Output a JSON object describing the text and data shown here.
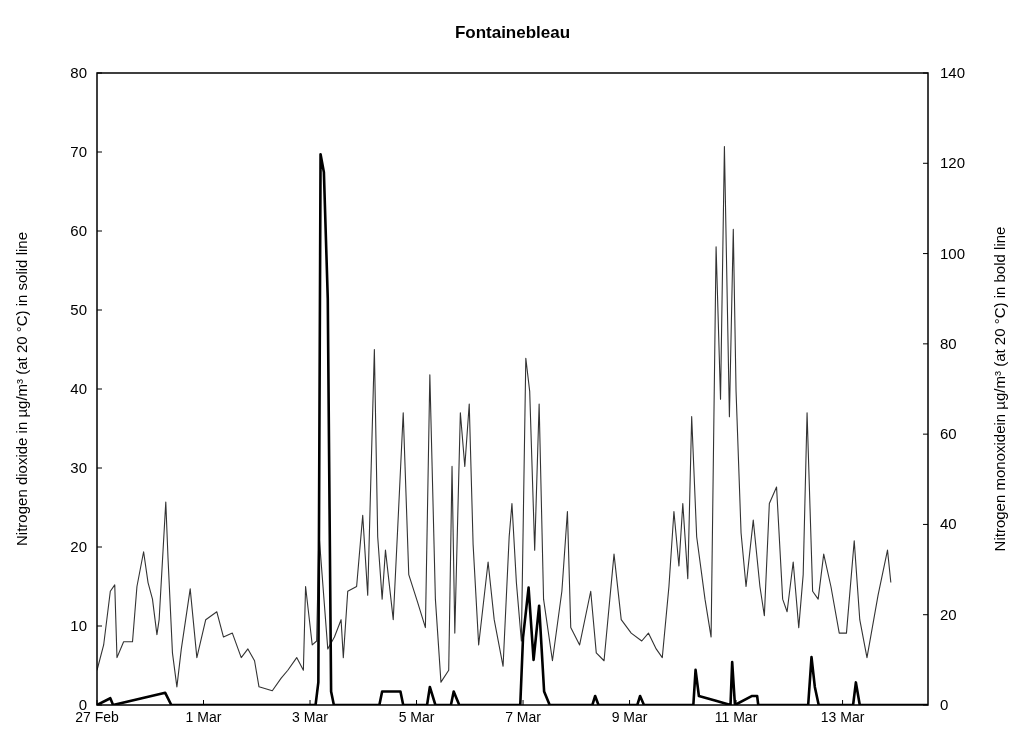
{
  "chart_data": {
    "type": "line",
    "title": "Fontainebleau",
    "ylabel": "Nitrogen dioxide in µg/m³ (at 20 °C) in solid line",
    "y2label": "Nitrogen monoxidein µg/m³ (at 20 °C) in bold line",
    "xlim": [
      "--02-27T00:00",
      "--03-14T14:30"
    ],
    "xticks": [
      {
        "value": "--02-27",
        "label": "27 Feb"
      },
      {
        "value": "--03-01",
        "label": "1 Mar"
      },
      {
        "value": "--03-03",
        "label": "3 Mar"
      },
      {
        "value": "--03-05",
        "label": "5 Mar"
      },
      {
        "value": "--03-07",
        "label": "7 Mar"
      },
      {
        "value": "--03-09",
        "label": "9 Mar"
      },
      {
        "value": "--03-11",
        "label": "11 Mar"
      },
      {
        "value": "--03-13",
        "label": "13 Mar"
      }
    ],
    "ylim": [
      0,
      80
    ],
    "yticks": [
      0,
      10,
      20,
      30,
      40,
      50,
      60,
      70,
      80
    ],
    "y2lim": [
      0,
      140
    ],
    "y2ticks": [
      0,
      20,
      40,
      60,
      80,
      100,
      120,
      140
    ],
    "grid": false,
    "marker": "none",
    "line_style": "solid",
    "series": [
      {
        "color": "#333333",
        "x": [
          "--02-27T00:00",
          "--02-27T03:00",
          "--02-27T06:00",
          "--02-27T08:00",
          "--02-27T09:00",
          "--02-27T12:00",
          "--02-27T16:00",
          "--02-27T18:00",
          "--02-27T21:00",
          "--02-27T23:00",
          "--02-28T01:00",
          "--02-28T03:00",
          "--02-28T04:00",
          "--02-28T07:00",
          "--02-28T08:00",
          "--02-28T10:00",
          "--02-28T12:00",
          "--02-28T14:00",
          "--02-28T18:00",
          "--02-28T21:00",
          "--03-01T01:00",
          "--03-01T06:00",
          "--03-01T09:00",
          "--03-01T13:00",
          "--03-01T17:00",
          "--03-01T20:00",
          "--03-01T23:00",
          "--03-02T01:00",
          "--03-02T07:00",
          "--03-02T11:00",
          "--03-02T14:00",
          "--03-02T18:00",
          "--03-02T21:00",
          "--03-02T22:00",
          "--03-03T01:00",
          "--03-03T03:00",
          "--03-03T04:00",
          "--03-03T08:00",
          "--03-03T11:00",
          "--03-03T14:00",
          "--03-03T15:00",
          "--03-03T17:00",
          "--03-03T21:00",
          "--03-03T23:45",
          "--03-04T02:00",
          "--03-04T05:00",
          "--03-04T06:30",
          "--03-04T08:30",
          "--03-04T10:00",
          "--03-04T13:30",
          "--03-04T15:30",
          "--03-04T18:00",
          "--03-04T20:30",
          "--03-05T00:30",
          "--03-05T04:00",
          "--03-05T06:00",
          "--03-05T08:30",
          "--03-05T11:00",
          "--03-05T14:30",
          "--03-05T16:00",
          "--03-05T17:15",
          "--03-05T19:45",
          "--03-05T21:45",
          "--03-05T23:45",
          "--03-06T01:30",
          "--03-06T04:00",
          "--03-06T08:15",
          "--03-06T11:00",
          "--03-06T15:00",
          "--03-06T17:45",
          "--03-06T19:00",
          "--03-06T21:00",
          "--03-06T23:15",
          "--03-07T01:15",
          "--03-07T03:00",
          "--03-07T05:15",
          "--03-07T07:15",
          "--03-07T09:15",
          "--03-07T13:15",
          "--03-07T17:30",
          "--03-07T20:00",
          "--03-07T21:30",
          "--03-08T01:30",
          "--03-08T06:30",
          "--03-08T09:00",
          "--03-08T12:30",
          "--03-08T17:00",
          "--03-08T20:15",
          "--03-09T00:45",
          "--03-09T05:30",
          "--03-09T08:30",
          "--03-09T12:00",
          "--03-09T14:45",
          "--03-09T17:45",
          "--03-09T20:00",
          "--03-09T22:15",
          "--03-10T00:00",
          "--03-10T02:15",
          "--03-10T04:00",
          "--03-10T06:15",
          "--03-10T08:15",
          "--03-10T10:00",
          "--03-10T12:45",
          "--03-10T15:00",
          "--03-10T17:00",
          "--03-10T18:45",
          "--03-10T21:00",
          "--03-10T22:45",
          "--03-11T00:00",
          "--03-11T02:15",
          "--03-11T04:30",
          "--03-11T07:45",
          "--03-11T10:45",
          "--03-11T12:45",
          "--03-11T15:00",
          "--03-11T18:15",
          "--03-11T21:00",
          "--03-11T23:00",
          "--03-12T01:45",
          "--03-12T04:15",
          "--03-12T06:15",
          "--03-12T08:00",
          "--03-12T10:30",
          "--03-12T13:00",
          "--03-12T15:30",
          "--03-12T18:45",
          "--03-12T22:30",
          "--03-13T01:45",
          "--03-13T05:15",
          "--03-13T07:45",
          "--03-13T11:00",
          "--03-13T16:00",
          "--03-13T20:15",
          "--03-13T21:45"
        ],
        "values": [
          4.4,
          7.6,
          14.4,
          15.2,
          6,
          8,
          8,
          15,
          19.4,
          15.5,
          13.4,
          8.9,
          10.8,
          25.7,
          18.6,
          6.6,
          2.3,
          7.1,
          14.7,
          6,
          10.8,
          11.8,
          8.6,
          9.1,
          6,
          7.1,
          5.6,
          2.3,
          1.8,
          3.4,
          4.4,
          6,
          4.4,
          15,
          7.6,
          8.1,
          21.8,
          7.1,
          8.6,
          10.8,
          6,
          14.4,
          15,
          24,
          13.9,
          45,
          21.3,
          13.4,
          19.6,
          10.8,
          22.3,
          37,
          16.5,
          13,
          9.8,
          41.8,
          13.4,
          2.9,
          4.4,
          30.2,
          9.1,
          37,
          30.2,
          38.1,
          20.3,
          7.6,
          18.1,
          10.8,
          4.9,
          21.3,
          25.5,
          15.5,
          8.1,
          43.9,
          39.7,
          19.6,
          38.1,
          13.4,
          5.6,
          14.4,
          24.5,
          9.8,
          7.6,
          14.4,
          6.6,
          5.6,
          19.1,
          10.8,
          9.1,
          8.1,
          9.1,
          7.1,
          6,
          15,
          24.5,
          17.6,
          25.5,
          16,
          36.5,
          21.3,
          17.1,
          13.4,
          8.6,
          58,
          38.7,
          70.7,
          36.5,
          60.2,
          39.7,
          21.8,
          15,
          23.4,
          15,
          11.3,
          25.5,
          27.6,
          13.4,
          11.8,
          18.1,
          9.8,
          16.5,
          37,
          14.4,
          13.4,
          19.1,
          15,
          9.1,
          9.1,
          20.8,
          10.8,
          6,
          13.9,
          19.6,
          15.5
        ]
      },
      {
        "color": "#000000",
        "axis": "y2",
        "x": [
          "--02-27T00:00",
          "--02-27T06:00",
          "--02-27T07:15",
          "--02-28T06:45",
          "--02-28T09:30",
          "--03-03T02:30",
          "--03-03T03:45",
          "--03-03T04:45",
          "--03-03T06:15",
          "--03-03T08:00",
          "--03-03T09:30",
          "--03-03T10:45",
          "--03-04T07:15",
          "--03-04T08:30",
          "--03-04T16:45",
          "--03-04T18:00",
          "--03-05T04:45",
          "--03-05T06:00",
          "--03-05T08:30",
          "--03-05T15:30",
          "--03-05T16:45",
          "--03-05T19:15",
          "--03-06T22:45",
          "--03-07T00:00",
          "--03-07T02:30",
          "--03-07T04:45",
          "--03-07T07:15",
          "--03-07T09:30",
          "--03-07T12:00",
          "--03-08T07:15",
          "--03-08T08:30",
          "--03-08T10:00",
          "--03-09T03:30",
          "--03-09T04:45",
          "--03-09T06:30",
          "--03-10T04:45",
          "--03-10T05:45",
          "--03-10T07:15",
          "--03-10T14:30",
          "--03-10T21:30",
          "--03-10T22:15",
          "--03-10T23:30",
          "--03-11T07:15",
          "--03-11T09:30",
          "--03-11T10:00",
          "--03-12T08:30",
          "--03-12T10:00",
          "--03-12T11:30",
          "--03-12T13:15",
          "--03-13T04:45",
          "--03-13T06:00",
          "--03-13T07:45",
          "--03-14T14:30"
        ],
        "values": [
          0,
          1.5,
          0,
          2.7,
          0,
          0,
          5,
          122,
          118,
          90,
          3,
          0,
          0,
          3,
          3,
          0,
          0,
          4,
          0,
          0,
          3,
          0,
          0,
          15,
          26,
          10,
          22,
          3,
          0,
          0,
          2,
          0,
          0,
          2,
          0,
          0,
          7.8,
          2,
          1,
          0,
          9.5,
          0,
          2,
          2,
          0,
          0,
          10.6,
          4,
          0,
          0,
          5,
          0,
          0
        ]
      }
    ]
  }
}
